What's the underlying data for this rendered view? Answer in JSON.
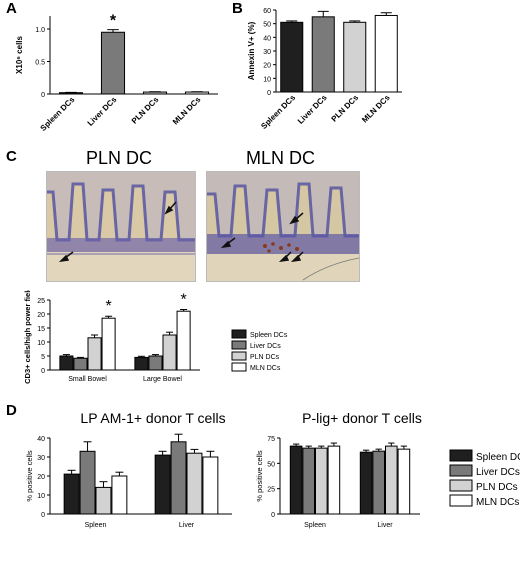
{
  "panels": {
    "A": "A",
    "B": "B",
    "C": "C",
    "D": "D"
  },
  "micrographs": {
    "left_title": "PLN DC",
    "right_title": "MLN DC"
  },
  "colors": {
    "spleen": "#1f1f1f",
    "liver": "#7a7a7a",
    "pln": "#d2d2d2",
    "mln": "#ffffff",
    "outline": "#000000",
    "tissue_bg": "#d8c8a8",
    "tissue_stain": "#5a5aa8",
    "stain_brown": "#8a3a1a"
  },
  "chart_data": [
    {
      "id": "A",
      "type": "bar",
      "categories": [
        "Spleen DCs",
        "Liver DCs",
        "PLN DCs",
        "MLN DCs"
      ],
      "values": [
        0.02,
        0.95,
        0.03,
        0.03
      ],
      "errors": [
        0.005,
        0.04,
        0.005,
        0.005
      ],
      "colors": [
        "#1f1f1f",
        "#7a7a7a",
        "#d2d2d2",
        "#ffffff"
      ],
      "ylabel": "X10⁶ cells",
      "ylim": [
        0,
        1.2
      ],
      "yticks": [
        "0",
        "0.5",
        "1.0"
      ],
      "ytick_values": [
        0,
        0.5,
        1.0
      ],
      "annotations": [
        {
          "index": 1,
          "text": "*"
        }
      ],
      "grid": false
    },
    {
      "id": "B",
      "type": "bar",
      "categories": [
        "Spleen DCs",
        "Liver DCs",
        "PLN DCs",
        "MLN DCs"
      ],
      "values": [
        51,
        55,
        51,
        56
      ],
      "errors": [
        1,
        4,
        1,
        2
      ],
      "colors": [
        "#1f1f1f",
        "#7a7a7a",
        "#d2d2d2",
        "#ffffff"
      ],
      "ylabel": "Annexin V+ (%)",
      "ylim": [
        0,
        60
      ],
      "yticks": [
        "0",
        "10",
        "20",
        "30",
        "40",
        "50",
        "60"
      ],
      "ytick_values": [
        0,
        10,
        20,
        30,
        40,
        50,
        60
      ],
      "grid": false
    },
    {
      "id": "C",
      "type": "bar",
      "categories": [
        "Small Bowel",
        "Large Bowel"
      ],
      "series": [
        {
          "name": "Spleen DCs",
          "values": [
            5,
            4.5
          ],
          "errors": [
            0.5,
            0.4
          ]
        },
        {
          "name": "Liver DCs",
          "values": [
            4.2,
            5
          ],
          "errors": [
            0.3,
            0.5
          ]
        },
        {
          "name": "PLN DCs",
          "values": [
            11.5,
            12.5
          ],
          "errors": [
            1,
            1
          ]
        },
        {
          "name": "MLN DCs",
          "values": [
            18.5,
            21
          ],
          "errors": [
            0.7,
            0.6
          ]
        }
      ],
      "ylabel": "CD3+ cells/high power field",
      "ylim": [
        0,
        25
      ],
      "yticks": [
        "0",
        "5",
        "10",
        "15",
        "20",
        "25"
      ],
      "ytick_values": [
        0,
        5,
        10,
        15,
        20,
        25
      ],
      "annotations": [
        {
          "category": 0,
          "series": 3,
          "text": "*"
        },
        {
          "category": 1,
          "series": 3,
          "text": "*"
        }
      ],
      "legend": "right",
      "grid": false
    },
    {
      "id": "D1",
      "type": "bar",
      "title": "LP AM-1+ donor T cells",
      "categories": [
        "Spleen",
        "Liver"
      ],
      "series": [
        {
          "name": "Spleen DCs",
          "values": [
            21,
            31
          ],
          "errors": [
            2,
            2
          ]
        },
        {
          "name": "Liver DCs",
          "values": [
            33,
            38
          ],
          "errors": [
            5,
            4
          ]
        },
        {
          "name": "PLN DCs",
          "values": [
            14,
            32
          ],
          "errors": [
            3,
            2
          ]
        },
        {
          "name": "MLN DCs",
          "values": [
            20,
            30
          ],
          "errors": [
            2,
            3
          ]
        }
      ],
      "ylabel": "% positive cells",
      "ylim": [
        0,
        40
      ],
      "yticks": [
        "0",
        "10",
        "20",
        "30",
        "40"
      ],
      "ytick_values": [
        0,
        10,
        20,
        30,
        40
      ],
      "grid": false
    },
    {
      "id": "D2",
      "type": "bar",
      "title": "P-lig+ donor T cells",
      "categories": [
        "Spleen",
        "Liver"
      ],
      "series": [
        {
          "name": "Spleen DCs",
          "values": [
            67,
            61
          ],
          "errors": [
            2,
            2
          ]
        },
        {
          "name": "Liver DCs",
          "values": [
            65,
            62
          ],
          "errors": [
            2,
            2
          ]
        },
        {
          "name": "PLN DCs",
          "values": [
            65,
            67
          ],
          "errors": [
            2,
            3
          ]
        },
        {
          "name": "MLN DCs",
          "values": [
            67,
            64
          ],
          "errors": [
            3,
            3
          ]
        }
      ],
      "ylabel": "% positive cells",
      "ylim": [
        0,
        75
      ],
      "yticks": [
        "0",
        "25",
        "50",
        "75"
      ],
      "ytick_values": [
        0,
        25,
        50,
        75
      ],
      "legend": "right",
      "grid": false
    }
  ]
}
